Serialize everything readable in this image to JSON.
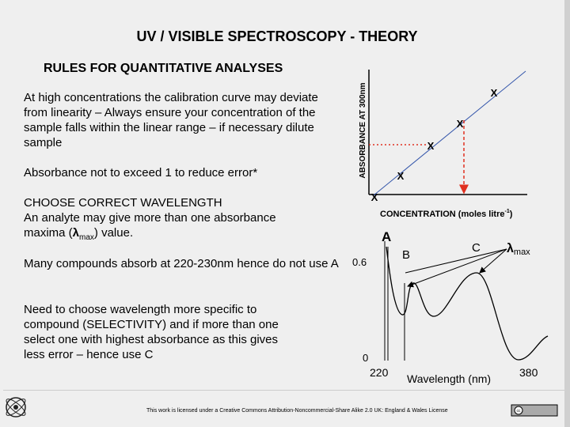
{
  "header": {
    "title": "UV / VISIBLE SPECTROSCOPY - THEORY",
    "subtitle": "RULES FOR QUANTITATIVE ANALYSES"
  },
  "paragraphs": [
    "At high concentrations the calibration curve may deviate from linearity – Always ensure your concentration of the sample falls within the linear range – if necessary dilute sample",
    "Absorbance not to exceed 1 to reduce error*",
    "CHOOSE CORRECT WAVELENGTH",
    [
      "An analyte may give more than one absorbance maxima (",
      "λ",
      "max",
      ") value."
    ],
    "Many compounds absorb at 220-230nm hence do not use A",
    "Need to choose wavelength more specific to compound (SELECTIVITY) and if more than one select one with highest absorbance as this gives less error – hence use C"
  ],
  "calibration": {
    "y_label": "ABSORBANCE AT 300nm",
    "x_label": [
      "CONCENTRATION  (moles litre",
      "-1",
      ")"
    ],
    "points": [
      "X",
      "X",
      "X",
      "X",
      "X"
    ]
  },
  "spectrum": {
    "peaks": [
      "A",
      "B",
      "C"
    ],
    "lambda": "λ",
    "lambda_sub": "max",
    "y_top": "0.6",
    "y_bottom": "0",
    "x_left": "220",
    "x_label": "Wavelength (nm)",
    "x_right": "380"
  },
  "footer": {
    "license": "This work is licensed under a Creative Commons Attribution-Noncommercial-Share Alike 2.0 UK: England & Wales License",
    "badge": "cc"
  }
}
